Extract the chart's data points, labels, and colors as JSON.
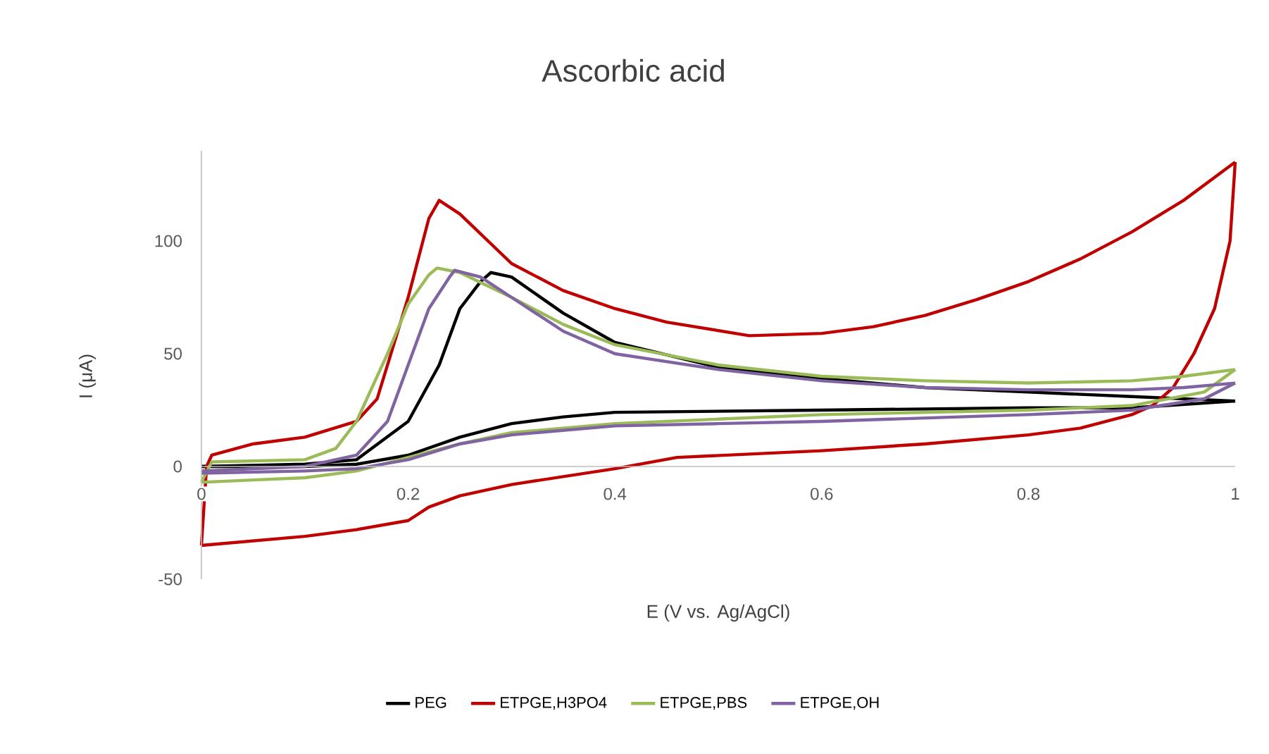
{
  "chart_data": {
    "type": "line",
    "title": "Ascorbic acid",
    "xlabel": "E (V vs. Ag/AgCl)",
    "ylabel": "I (μA)",
    "xlim": [
      0,
      1
    ],
    "ylim": [
      -50,
      140
    ],
    "xticks": [
      0,
      0.2,
      0.4,
      0.6,
      0.8,
      1
    ],
    "yticks": [
      -50,
      0,
      50,
      100
    ],
    "grid": false,
    "legend": "bottom",
    "marker": "none",
    "line_style": "solid",
    "series": [
      {
        "name": "PEG",
        "color": "#000000",
        "x": [
          0,
          0.1,
          0.15,
          0.2,
          0.23,
          0.25,
          0.27,
          0.28,
          0.3,
          0.35,
          0.4,
          0.5,
          0.6,
          0.7,
          0.8,
          0.9,
          1.0
        ],
        "values": [
          0,
          1,
          3,
          20,
          45,
          70,
          82,
          86,
          84,
          68,
          55,
          44,
          39,
          35,
          33,
          31,
          29
        ]
      },
      {
        "color": "#000000",
        "x": [
          1.0,
          0.9,
          0.8,
          0.6,
          0.4,
          0.35,
          0.3,
          0.25,
          0.2,
          0.15,
          0.1,
          0
        ],
        "values": [
          29,
          26,
          26,
          25,
          24,
          22,
          19,
          13,
          5,
          1,
          0,
          0
        ]
      },
      {
        "name": "ETPGE,H3PO4",
        "color": "#c00000",
        "x": [
          0,
          0.005,
          0.01,
          0.05,
          0.1,
          0.15,
          0.17,
          0.2,
          0.22,
          0.23,
          0.25,
          0.3,
          0.35,
          0.4,
          0.45,
          0.53,
          0.6,
          0.65,
          0.7,
          0.75,
          0.8,
          0.85,
          0.9,
          0.95,
          1.0
        ],
        "values": [
          -35,
          0,
          5,
          10,
          13,
          20,
          30,
          75,
          110,
          118,
          112,
          90,
          78,
          70,
          64,
          58,
          59,
          62,
          67,
          74,
          82,
          92,
          104,
          118,
          135
        ]
      },
      {
        "color": "#c00000",
        "x": [
          1.0,
          0.995,
          0.98,
          0.96,
          0.94,
          0.92,
          0.9,
          0.85,
          0.8,
          0.7,
          0.6,
          0.46,
          0.4,
          0.3,
          0.25,
          0.22,
          0.2,
          0.15,
          0.1,
          0.05,
          0.0
        ],
        "values": [
          135,
          100,
          70,
          50,
          35,
          27,
          23,
          17,
          14,
          10,
          7,
          4,
          -1,
          -8,
          -13,
          -18,
          -24,
          -28,
          -31,
          -33,
          -35
        ]
      },
      {
        "name": "ETPGE,PBS",
        "color": "#9bbb59",
        "x": [
          0,
          0.01,
          0.1,
          0.13,
          0.15,
          0.18,
          0.2,
          0.22,
          0.228,
          0.25,
          0.3,
          0.35,
          0.4,
          0.5,
          0.6,
          0.7,
          0.8,
          0.9,
          0.95,
          1.0
        ],
        "values": [
          -7,
          2,
          3,
          8,
          20,
          50,
          72,
          85,
          88,
          86,
          75,
          63,
          54,
          45,
          40,
          38,
          37,
          38,
          40,
          43
        ]
      },
      {
        "color": "#9bbb59",
        "x": [
          1.0,
          0.97,
          0.9,
          0.8,
          0.6,
          0.5,
          0.4,
          0.3,
          0.25,
          0.2,
          0.15,
          0.1,
          0.05,
          0
        ],
        "values": [
          43,
          33,
          27,
          25,
          23,
          21,
          19,
          15,
          10,
          4,
          -2,
          -5,
          -6,
          -7
        ]
      },
      {
        "name": "ETPGE,OH",
        "color": "#8064a2",
        "x": [
          0,
          0.1,
          0.15,
          0.18,
          0.2,
          0.22,
          0.24,
          0.245,
          0.27,
          0.3,
          0.35,
          0.4,
          0.5,
          0.6,
          0.7,
          0.8,
          0.9,
          0.95,
          1.0
        ],
        "values": [
          -2,
          0,
          5,
          20,
          45,
          70,
          84,
          87,
          84,
          75,
          60,
          50,
          43,
          38,
          35,
          34,
          34,
          35,
          37
        ]
      },
      {
        "color": "#8064a2",
        "x": [
          1.0,
          0.97,
          0.9,
          0.8,
          0.6,
          0.5,
          0.4,
          0.3,
          0.25,
          0.2,
          0.15,
          0.1,
          0
        ],
        "values": [
          37,
          30,
          25,
          23,
          20,
          19,
          18,
          14,
          10,
          3,
          -1,
          -2,
          -3
        ]
      }
    ]
  }
}
